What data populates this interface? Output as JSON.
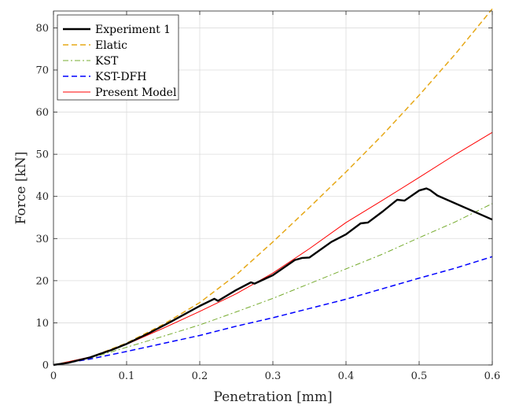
{
  "chart_data": {
    "type": "line",
    "title": "",
    "xlabel": "Penetration [mm]",
    "ylabel": "Force [kN]",
    "xlim": [
      0,
      0.6
    ],
    "ylim": [
      0,
      84
    ],
    "xticks": [
      "0",
      "0.1",
      "0.2",
      "0.3",
      "0.4",
      "0.5",
      "0.6"
    ],
    "yticks": [
      "0",
      "10",
      "20",
      "30",
      "40",
      "50",
      "60",
      "70",
      "80"
    ],
    "grid": true,
    "legend_position": "top-left",
    "series": [
      {
        "name": "Experiment 1",
        "color": "#000000",
        "style": "solid-thick",
        "x": [
          0,
          0.02,
          0.05,
          0.08,
          0.1,
          0.13,
          0.16,
          0.2,
          0.22,
          0.225,
          0.25,
          0.27,
          0.275,
          0.3,
          0.33,
          0.34,
          0.35,
          0.38,
          0.4,
          0.42,
          0.43,
          0.45,
          0.47,
          0.48,
          0.5,
          0.51,
          0.515,
          0.525,
          0.6
        ],
        "y": [
          0,
          0.5,
          1.8,
          3.6,
          5.0,
          7.5,
          10.2,
          14.0,
          15.7,
          15.2,
          17.8,
          19.6,
          19.3,
          21.3,
          24.9,
          25.4,
          25.5,
          29.2,
          31.0,
          33.6,
          33.8,
          36.4,
          39.2,
          39.0,
          41.4,
          41.9,
          41.5,
          40.2,
          34.5
        ]
      },
      {
        "name": "Elatic",
        "color": "#E6A817",
        "style": "dashed",
        "x": [
          0,
          0.05,
          0.1,
          0.15,
          0.2,
          0.25,
          0.3,
          0.35,
          0.4,
          0.45,
          0.5,
          0.55,
          0.6
        ],
        "y": [
          0,
          1.8,
          5.2,
          9.6,
          14.8,
          21.4,
          29.2,
          37.4,
          45.8,
          54.6,
          64.0,
          73.9,
          84.5
        ]
      },
      {
        "name": "KST",
        "color": "#77AC30",
        "style": "dashdot",
        "x": [
          0,
          0.05,
          0.1,
          0.15,
          0.2,
          0.25,
          0.3,
          0.35,
          0.4,
          0.45,
          0.5,
          0.55,
          0.6
        ],
        "y": [
          0,
          1.6,
          4.2,
          6.8,
          9.5,
          12.6,
          15.8,
          19.3,
          22.8,
          26.3,
          30.2,
          34.0,
          38.3
        ]
      },
      {
        "name": "KST-DFH",
        "color": "#0000FF",
        "style": "dashed",
        "x": [
          0,
          0.05,
          0.1,
          0.15,
          0.2,
          0.25,
          0.3,
          0.35,
          0.4,
          0.45,
          0.5,
          0.55,
          0.6
        ],
        "y": [
          0,
          1.4,
          3.2,
          5.1,
          7.0,
          9.2,
          11.2,
          13.4,
          15.6,
          18.1,
          20.6,
          23.0,
          25.7
        ]
      },
      {
        "name": "Present Model",
        "color": "#FF0000",
        "style": "solid",
        "x": [
          0,
          0.05,
          0.1,
          0.15,
          0.2,
          0.25,
          0.3,
          0.35,
          0.4,
          0.45,
          0.5,
          0.55,
          0.6
        ],
        "y": [
          0,
          1.9,
          4.9,
          8.7,
          12.7,
          16.9,
          21.8,
          27.6,
          33.8,
          39.1,
          44.5,
          50.0,
          55.2
        ]
      }
    ]
  }
}
